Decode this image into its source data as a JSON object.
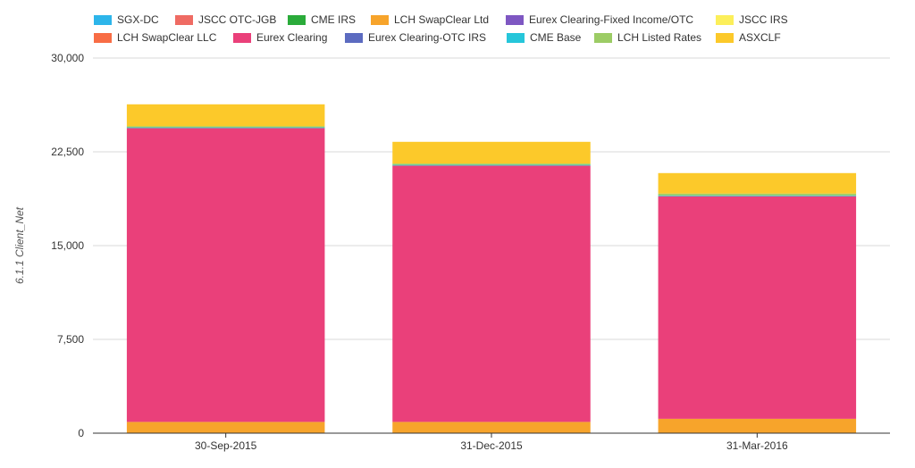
{
  "chart_data": {
    "type": "bar",
    "stacked": true,
    "categories": [
      "30-Sep-2015",
      "31-Dec-2015",
      "31-Mar-2016"
    ],
    "ylabel": "6.1.1 Client_Net",
    "xlabel": "",
    "ylim": [
      0,
      30000
    ],
    "yticks": [
      0,
      7500,
      15000,
      22500,
      30000
    ],
    "ytick_labels": [
      "0",
      "7,500",
      "15,000",
      "22,500",
      "30,000"
    ],
    "grid": true,
    "legend_position": "top",
    "series": [
      {
        "name": "SGX-DC",
        "color": "#2db5ea",
        "values": [
          0,
          0,
          0
        ]
      },
      {
        "name": "JSCC OTC-JGB",
        "color": "#ef6b63",
        "values": [
          0,
          0,
          0
        ]
      },
      {
        "name": "CME IRS",
        "color": "#2aab3a",
        "values": [
          0,
          0,
          0
        ]
      },
      {
        "name": "LCH SwapClear Ltd",
        "color": "#f7a42b",
        "values": [
          900,
          900,
          1150
        ]
      },
      {
        "name": "Eurex Clearing-Fixed Income/OTC",
        "color": "#7e57c2",
        "values": [
          0,
          0,
          0
        ]
      },
      {
        "name": "JSCC IRS",
        "color": "#fcef5a",
        "values": [
          0,
          0,
          0
        ]
      },
      {
        "name": "LCH SwapClear LLC",
        "color": "#f86d45",
        "values": [
          0,
          0,
          0
        ]
      },
      {
        "name": "Eurex Clearing",
        "color": "#ea407a",
        "values": [
          23500,
          20500,
          17800
        ]
      },
      {
        "name": "Eurex Clearing-OTC IRS",
        "color": "#5c6bc0",
        "values": [
          0,
          0,
          0
        ]
      },
      {
        "name": "CME Base",
        "color": "#26c6da",
        "values": [
          60,
          60,
          60
        ]
      },
      {
        "name": "LCH Listed Rates",
        "color": "#9ccc65",
        "values": [
          80,
          100,
          150
        ]
      },
      {
        "name": "ASXCLF",
        "color": "#fcc92a",
        "values": [
          1760,
          1740,
          1640
        ]
      }
    ]
  }
}
